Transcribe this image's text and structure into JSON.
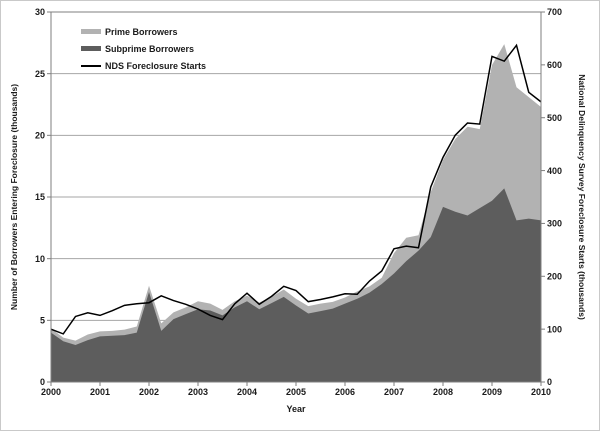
{
  "chart_data": {
    "type": "combo-stacked-area-line",
    "x_axis": {
      "label": "Year",
      "tick_labels": [
        "2000",
        "2001",
        "2002",
        "2003",
        "2004",
        "2005",
        "2006",
        "2007",
        "2008",
        "2009",
        "2010"
      ]
    },
    "left_axis": {
      "label": "Number of Borrowers Entering Foreclosure (thousands)",
      "min": 0,
      "max": 30,
      "ticks": [
        "0",
        "5",
        "10",
        "15",
        "20",
        "25",
        "30"
      ]
    },
    "right_axis": {
      "label": "National Delinquency Survey Foreclosure Starts (thousands)",
      "min": 0,
      "max": 700,
      "ticks": [
        "0",
        "100",
        "200",
        "300",
        "400",
        "500",
        "600",
        "700"
      ]
    },
    "x": [
      2000,
      2000.25,
      2000.5,
      2000.75,
      2001,
      2001.25,
      2001.5,
      2001.75,
      2002,
      2002.25,
      2002.5,
      2002.75,
      2003,
      2003.25,
      2003.5,
      2003.75,
      2004,
      2004.25,
      2004.5,
      2004.75,
      2005,
      2005.25,
      2005.5,
      2005.75,
      2006,
      2006.25,
      2006.5,
      2006.75,
      2007,
      2007.25,
      2007.5,
      2007.75,
      2008,
      2008.25,
      2008.5,
      2008.75,
      2009,
      2009.25,
      2009.5,
      2009.75,
      2010
    ],
    "series": [
      {
        "name": "Subprime Borrowers",
        "type": "area",
        "stack": "borrowers",
        "axis": "left",
        "color": "#5d5d5d",
        "values": [
          4.0,
          3.3,
          3.0,
          3.4,
          3.7,
          3.75,
          3.8,
          4.0,
          7.3,
          4.15,
          5.1,
          5.5,
          5.9,
          5.8,
          5.4,
          6.05,
          6.55,
          5.9,
          6.4,
          6.9,
          6.2,
          5.55,
          5.75,
          5.95,
          6.35,
          6.75,
          7.25,
          7.95,
          8.8,
          9.8,
          10.65,
          11.75,
          14.2,
          13.8,
          13.5,
          14.1,
          14.7,
          15.7,
          13.1,
          13.25,
          13.1
        ]
      },
      {
        "name": "Prime Borrowers",
        "type": "area",
        "stack": "borrowers",
        "axis": "left",
        "color": "#b2b2b2",
        "values": [
          0.35,
          0.3,
          0.35,
          0.45,
          0.4,
          0.4,
          0.45,
          0.5,
          0.5,
          0.6,
          0.55,
          0.55,
          0.65,
          0.55,
          0.45,
          0.5,
          0.45,
          0.55,
          0.5,
          0.6,
          0.55,
          0.6,
          0.6,
          0.55,
          0.5,
          0.6,
          0.5,
          0.5,
          1.65,
          1.9,
          1.25,
          3.65,
          3.8,
          5.9,
          7.2,
          6.4,
          11.0,
          11.7,
          10.8,
          9.85,
          9.2
        ]
      },
      {
        "name": "NDS Foreclosure Starts",
        "type": "line",
        "axis": "right",
        "color": "#000000",
        "values": [
          100,
          91,
          124,
          131,
          126,
          135,
          145,
          148,
          150,
          163,
          154,
          147,
          138,
          126,
          118,
          148,
          168,
          147,
          162,
          181,
          173,
          152,
          156,
          161,
          167,
          166,
          191,
          210,
          252,
          257,
          254,
          369,
          425,
          467,
          490,
          488,
          616,
          607,
          637,
          548,
          530
        ]
      }
    ],
    "legend": {
      "position": "top-left-inside",
      "items": [
        {
          "label": "Prime Borrowers",
          "color": "#b2b2b2",
          "kind": "box"
        },
        {
          "label": "Subprime Borrowers",
          "color": "#5d5d5d",
          "kind": "box"
        },
        {
          "label": "NDS Foreclosure Starts",
          "color": "#000000",
          "kind": "line"
        }
      ]
    },
    "grid": {
      "horizontal": true
    },
    "colors": {
      "gridline": "#a6a6a6",
      "axis": "#7f7f7f",
      "text": "#1a1a1a",
      "background": "#ffffff",
      "outer_border": "#c9c9c9"
    }
  }
}
